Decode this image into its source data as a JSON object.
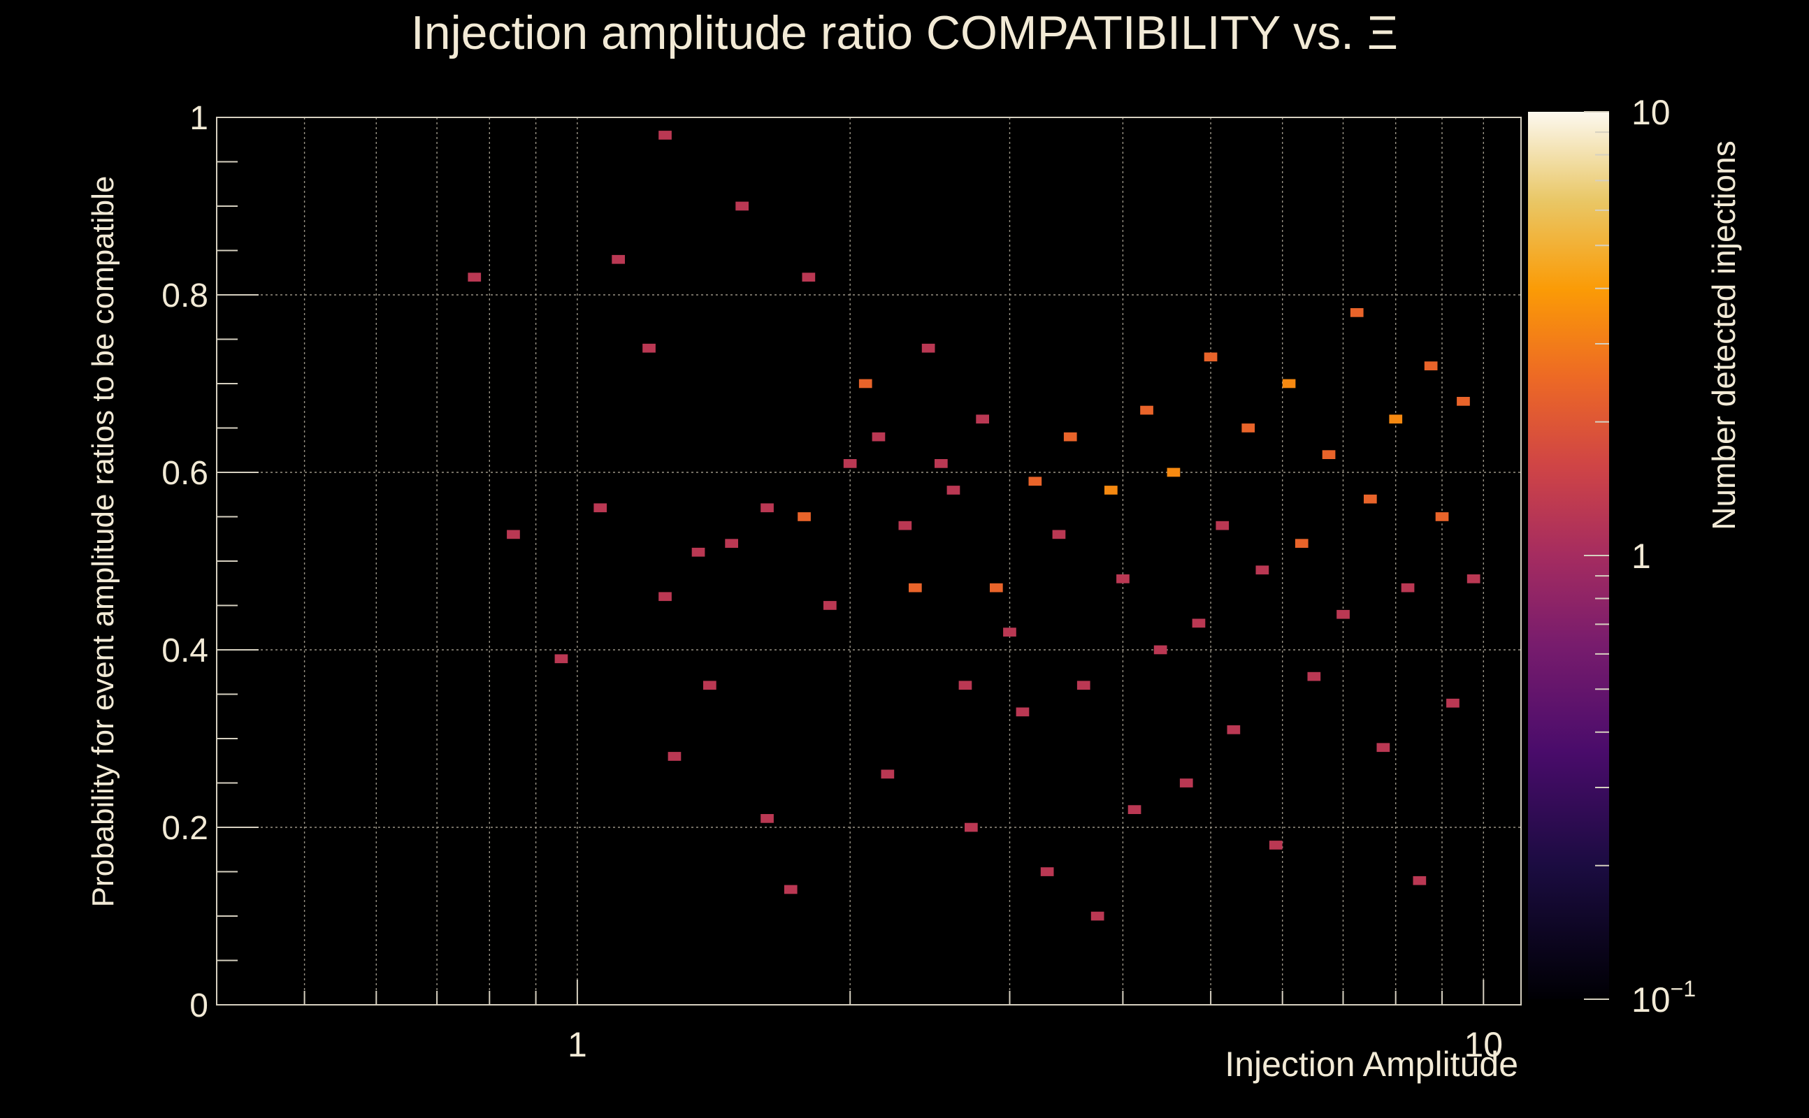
{
  "chart_data": {
    "type": "heatmap",
    "title": "Injection amplitude ratio COMPATIBILITY vs.  Ξ",
    "xlabel": "Injection Amplitude",
    "ylabel": "Probability for event amplitude ratios to be compatible",
    "zlabel": "Number detected injections",
    "x_scale": "log",
    "xlim": [
      0.4,
      11
    ],
    "x_ticks": [
      {
        "value": 1,
        "label": "1"
      },
      {
        "value": 10,
        "label": "10"
      }
    ],
    "ylim": [
      0,
      1
    ],
    "y_ticks": [
      {
        "value": 0,
        "label": "0"
      },
      {
        "value": 0.2,
        "label": "0.2"
      },
      {
        "value": 0.4,
        "label": "0.4"
      },
      {
        "value": 0.6,
        "label": "0.6"
      },
      {
        "value": 0.8,
        "label": "0.8"
      },
      {
        "value": 1,
        "label": "1"
      }
    ],
    "z_scale": "log",
    "zlim": [
      0.1,
      10
    ],
    "z_ticks": [
      {
        "value": 10,
        "label": "10"
      },
      {
        "value": 1,
        "label": "1"
      },
      {
        "value": 0.1,
        "label": "10",
        "exponent": "−1"
      }
    ],
    "grid": true,
    "palette": [
      "#000004",
      "#1b0c41",
      "#4a0c6b",
      "#781c6d",
      "#a52c60",
      "#cf4446",
      "#ed6925",
      "#fb9b06",
      "#f7d13d",
      "#fcffa4"
    ],
    "cells": [
      [
        0.77,
        0.82,
        1
      ],
      [
        0.85,
        0.53,
        1
      ],
      [
        0.96,
        0.39,
        1
      ],
      [
        1.06,
        0.56,
        1
      ],
      [
        1.11,
        0.84,
        1
      ],
      [
        1.2,
        0.74,
        1
      ],
      [
        1.25,
        0.98,
        1
      ],
      [
        1.25,
        0.46,
        1
      ],
      [
        1.28,
        0.28,
        1
      ],
      [
        1.36,
        0.51,
        1
      ],
      [
        1.4,
        0.36,
        1
      ],
      [
        1.48,
        0.52,
        1
      ],
      [
        1.52,
        0.9,
        1
      ],
      [
        1.62,
        0.56,
        1
      ],
      [
        1.62,
        0.21,
        1
      ],
      [
        1.72,
        0.13,
        1
      ],
      [
        1.78,
        0.55,
        2
      ],
      [
        1.8,
        0.82,
        1
      ],
      [
        1.9,
        0.45,
        1
      ],
      [
        2.0,
        0.61,
        1
      ],
      [
        2.08,
        0.7,
        2
      ],
      [
        2.15,
        0.64,
        1
      ],
      [
        2.2,
        0.26,
        1
      ],
      [
        2.3,
        0.54,
        1
      ],
      [
        2.36,
        0.47,
        2
      ],
      [
        2.44,
        0.74,
        1
      ],
      [
        2.52,
        0.61,
        1
      ],
      [
        2.6,
        0.58,
        1
      ],
      [
        2.68,
        0.36,
        1
      ],
      [
        2.72,
        0.2,
        1
      ],
      [
        2.8,
        0.66,
        1
      ],
      [
        2.9,
        0.47,
        2
      ],
      [
        3.0,
        0.42,
        1
      ],
      [
        3.1,
        0.33,
        1
      ],
      [
        3.2,
        0.59,
        2
      ],
      [
        3.3,
        0.15,
        1
      ],
      [
        3.4,
        0.53,
        1
      ],
      [
        3.5,
        0.64,
        2
      ],
      [
        3.62,
        0.36,
        1
      ],
      [
        3.75,
        0.1,
        1
      ],
      [
        3.88,
        0.58,
        3
      ],
      [
        4.0,
        0.48,
        1
      ],
      [
        4.12,
        0.22,
        1
      ],
      [
        4.25,
        0.67,
        2
      ],
      [
        4.4,
        0.4,
        1
      ],
      [
        4.55,
        0.6,
        3
      ],
      [
        4.7,
        0.25,
        1
      ],
      [
        4.85,
        0.43,
        1
      ],
      [
        5.0,
        0.73,
        2
      ],
      [
        5.15,
        0.54,
        1
      ],
      [
        5.3,
        0.31,
        1
      ],
      [
        5.5,
        0.65,
        2
      ],
      [
        5.7,
        0.49,
        1
      ],
      [
        5.9,
        0.18,
        1
      ],
      [
        6.1,
        0.7,
        3
      ],
      [
        6.3,
        0.52,
        2
      ],
      [
        6.5,
        0.37,
        1
      ],
      [
        6.75,
        0.62,
        2
      ],
      [
        7.0,
        0.44,
        1
      ],
      [
        7.25,
        0.78,
        2
      ],
      [
        7.5,
        0.57,
        2
      ],
      [
        7.75,
        0.29,
        1
      ],
      [
        8.0,
        0.66,
        3
      ],
      [
        8.25,
        0.47,
        1
      ],
      [
        8.5,
        0.14,
        1
      ],
      [
        8.75,
        0.72,
        2
      ],
      [
        9.0,
        0.55,
        2
      ],
      [
        9.25,
        0.34,
        1
      ],
      [
        9.5,
        0.68,
        2
      ],
      [
        9.75,
        0.48,
        1
      ]
    ]
  }
}
